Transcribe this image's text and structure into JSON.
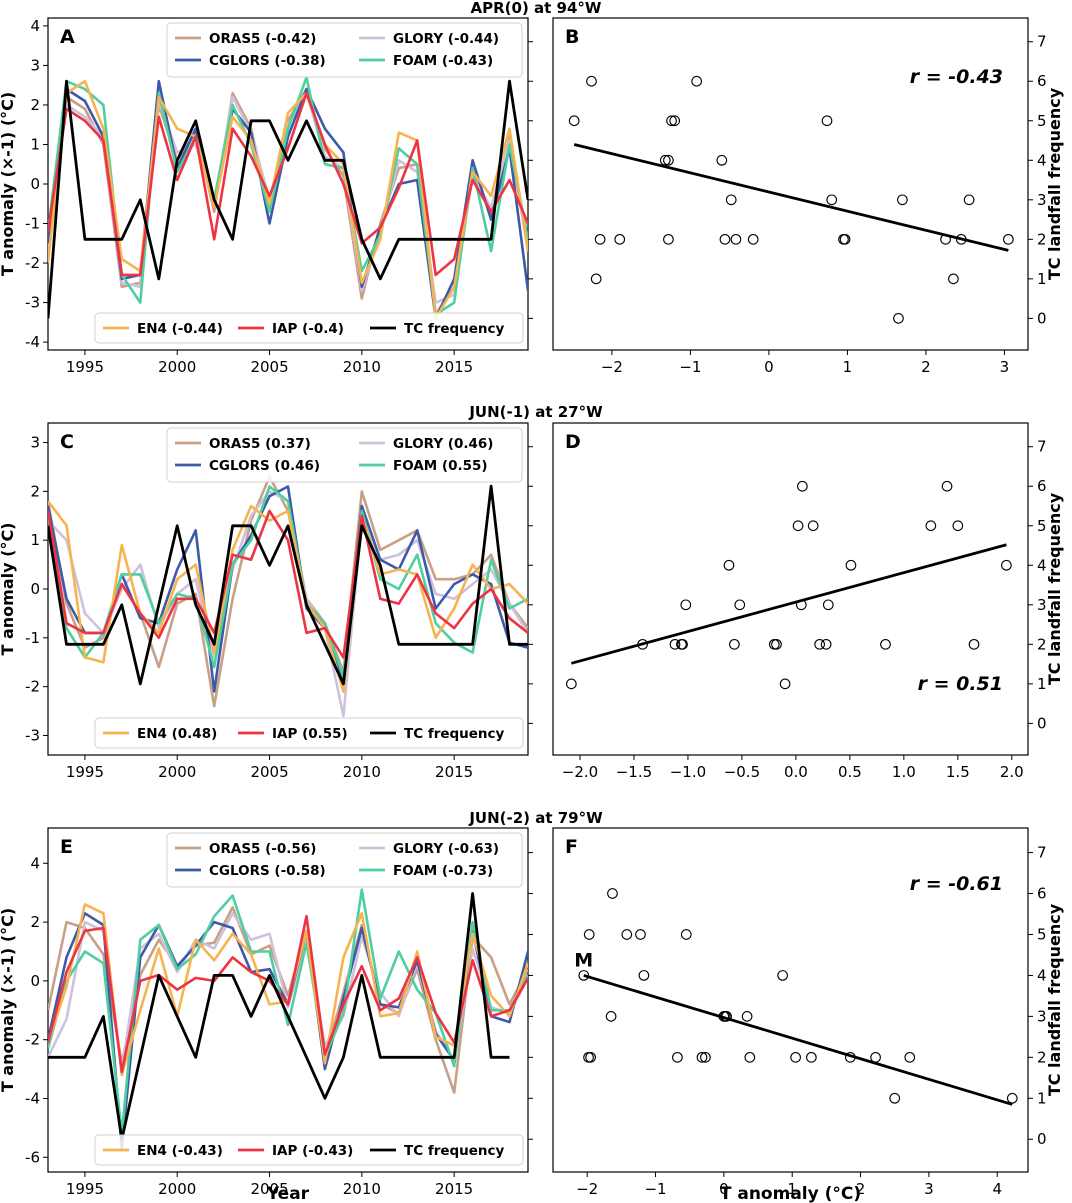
{
  "figure_labels": {
    "xlabel_left": "Year",
    "xlabel_right": "T anomaly (°C)",
    "label_M": "M"
  },
  "chart_data": [
    {
      "type": "line",
      "panel": "A",
      "title": "APR(0) at 94°W",
      "ylabel": "T anomaly (×-1) (°C)",
      "xlabel": "",
      "xlim": [
        1993,
        2019
      ],
      "ylim": [
        -4.2,
        4.2
      ],
      "xticks": [
        1995,
        2000,
        2005,
        2010,
        2015
      ],
      "yticks": [
        -4,
        -3,
        -2,
        -1,
        0,
        1,
        2,
        3,
        4
      ],
      "tc_ylim": [
        -0.8,
        7.6
      ],
      "legend_top": [
        "ORAS5 (-0.42)",
        "GLORY (-0.44)",
        "CGLORS (-0.38)",
        "FOAM (-0.43)"
      ],
      "legend_bottom": [
        "EN4 (-0.44)",
        "IAP (-0.4)",
        "TC frequency"
      ],
      "x": [
        1993,
        1994,
        1995,
        1996,
        1997,
        1998,
        1999,
        2000,
        2001,
        2002,
        2003,
        2004,
        2005,
        2006,
        2007,
        2008,
        2009,
        2010,
        2011,
        2012,
        2013,
        2014,
        2015,
        2016,
        2017,
        2018,
        2019
      ],
      "series": [
        {
          "name": "ORAS5",
          "color": "#c8a088",
          "values": [
            -1.8,
            2.2,
            1.9,
            1.0,
            -2.6,
            -2.5,
            2.0,
            0.6,
            1.3,
            -0.7,
            2.3,
            1.4,
            -0.6,
            1.6,
            2.4,
            0.9,
            0.2,
            -2.9,
            -1.0,
            0.4,
            0.5,
            -3.3,
            -2.6,
            0.3,
            -0.8,
            1.2,
            -1.5
          ]
        },
        {
          "name": "GLORY",
          "color": "#cfc1dc",
          "values": [
            -1.6,
            2.0,
            1.7,
            1.2,
            -2.5,
            -2.6,
            2.1,
            0.8,
            1.0,
            -0.5,
            2.2,
            1.3,
            -0.4,
            1.5,
            2.3,
            0.7,
            0.4,
            -2.7,
            -1.2,
            0.6,
            0.3,
            -3.0,
            -2.8,
            0.2,
            -0.6,
            1.1,
            -1.7
          ]
        },
        {
          "name": "CGLORS",
          "color": "#3d5aa8",
          "values": [
            -1.5,
            2.4,
            2.1,
            1.2,
            -2.4,
            -2.3,
            2.6,
            0.4,
            1.4,
            -0.6,
            1.9,
            1.3,
            -1.0,
            1.2,
            2.4,
            1.4,
            0.8,
            -2.6,
            -1.1,
            0.0,
            0.1,
            -3.4,
            -2.4,
            0.6,
            -0.9,
            0.9,
            -2.7
          ]
        },
        {
          "name": "FOAM",
          "color": "#4fcf9e",
          "values": [
            -1.2,
            2.6,
            2.4,
            2.0,
            -2.3,
            -3.0,
            2.3,
            0.3,
            1.2,
            -0.4,
            2.0,
            1.0,
            -0.7,
            1.4,
            2.7,
            0.5,
            0.4,
            -2.2,
            -1.3,
            0.9,
            0.5,
            -3.3,
            -3.0,
            0.4,
            -1.7,
            1.0,
            -1.4
          ]
        },
        {
          "name": "EN4",
          "color": "#f7b350",
          "values": [
            -2.0,
            2.3,
            2.6,
            1.4,
            -1.9,
            -2.2,
            2.2,
            1.4,
            1.2,
            -0.6,
            1.7,
            1.1,
            -0.5,
            1.8,
            2.3,
            1.0,
            0.5,
            -2.5,
            -1.4,
            1.3,
            1.1,
            -3.4,
            -2.6,
            0.3,
            -0.3,
            1.4,
            -1.7
          ]
        },
        {
          "name": "IAP",
          "color": "#ee3344",
          "values": [
            -1.2,
            1.9,
            1.6,
            1.1,
            -2.3,
            -2.3,
            1.7,
            0.1,
            1.2,
            -1.4,
            1.4,
            0.7,
            -0.3,
            0.9,
            2.3,
            1.0,
            0.0,
            -1.5,
            -1.1,
            -0.1,
            1.1,
            -2.3,
            -1.9,
            0.1,
            -0.7,
            0.1,
            -1.0
          ]
        }
      ],
      "tc_frequency": {
        "name": "TC frequency",
        "color": "#000000",
        "values": [
          0,
          6,
          2,
          2,
          2,
          3,
          1,
          4,
          5,
          3,
          2,
          5,
          5,
          4,
          5,
          4,
          4,
          2,
          1,
          2,
          2,
          2,
          2,
          2,
          2,
          6,
          3
        ]
      },
      "annotations": {
        "panel_label": "A"
      }
    },
    {
      "type": "scatter",
      "panel": "B",
      "ylabel": "TC landfall frequency",
      "xlabel": "",
      "xlim": [
        -2.75,
        3.3
      ],
      "ylim": [
        -0.8,
        7.6
      ],
      "xticks": [
        -2,
        -1,
        0,
        1,
        2,
        3
      ],
      "yticks": [
        0,
        1,
        2,
        3,
        4,
        5,
        6,
        7
      ],
      "r_text": "r = -0.43",
      "x": [
        -2.48,
        -2.26,
        -2.2,
        -2.15,
        -1.9,
        -1.32,
        -1.28,
        -1.24,
        -1.28,
        -1.2,
        -0.92,
        -0.6,
        -0.56,
        -0.48,
        -0.42,
        -0.2,
        0.74,
        0.8,
        0.95,
        0.97,
        1.65,
        1.7,
        2.25,
        2.35,
        2.45,
        2.55,
        3.05
      ],
      "y": [
        5,
        6,
        1,
        2,
        2,
        4,
        2,
        5,
        4,
        5,
        6,
        4,
        2,
        3,
        2,
        2,
        5,
        3,
        2,
        2,
        0,
        3,
        2,
        1,
        2,
        3,
        2
      ],
      "fit": {
        "x": [
          -2.48,
          3.05
        ],
        "y": [
          4.4,
          1.72
        ]
      },
      "annotations": {
        "panel_label": "B"
      }
    },
    {
      "type": "line",
      "panel": "C",
      "title": "JUN(-1) at 27°W",
      "ylabel": "T anomaly (°C)",
      "xlabel": "",
      "xlim": [
        1993,
        2019
      ],
      "ylim": [
        -3.4,
        3.4
      ],
      "xticks": [
        1995,
        2000,
        2005,
        2010,
        2015
      ],
      "yticks": [
        -3,
        -2,
        -1,
        0,
        1,
        2,
        3
      ],
      "tc_ylim": [
        -0.8,
        7.6
      ],
      "legend_top": [
        "ORAS5 (0.37)",
        "GLORY (0.46)",
        "CGLORS (0.46)",
        "FOAM (0.55)"
      ],
      "legend_bottom": [
        "EN4 (0.48)",
        "IAP (0.55)",
        "TC frequency"
      ],
      "x": [
        1993,
        1994,
        1995,
        1996,
        1997,
        1998,
        1999,
        2000,
        2001,
        2002,
        2003,
        2004,
        2005,
        2006,
        2007,
        2008,
        2009,
        2010,
        2011,
        2012,
        2013,
        2014,
        2015,
        2016,
        2017,
        2018,
        2019
      ],
      "series": [
        {
          "name": "ORAS5",
          "color": "#c8a088",
          "values": [
            1.8,
            -0.3,
            -1.2,
            -1.0,
            0.1,
            -0.5,
            -1.6,
            -0.3,
            -0.1,
            -2.4,
            -0.2,
            1.4,
            2.3,
            1.6,
            -0.2,
            -0.7,
            -1.7,
            2.0,
            0.8,
            1.0,
            1.2,
            0.2,
            0.2,
            0.3,
            0.7,
            -0.3,
            -0.8
          ]
        },
        {
          "name": "GLORY",
          "color": "#cfc1dc",
          "values": [
            1.4,
            1.0,
            -0.5,
            -0.9,
            0.0,
            0.5,
            -0.8,
            -0.1,
            0.2,
            -1.4,
            0.4,
            1.5,
            2.0,
            1.8,
            -0.2,
            -0.8,
            -2.6,
            1.4,
            0.6,
            0.7,
            1.0,
            -0.1,
            -0.2,
            0.1,
            0.4,
            -0.3,
            -0.9
          ]
        },
        {
          "name": "CGLORS",
          "color": "#3d5aa8",
          "values": [
            1.7,
            -0.2,
            -0.9,
            -0.9,
            0.3,
            -0.6,
            -0.7,
            0.4,
            1.2,
            -2.1,
            0.5,
            1.1,
            1.9,
            2.1,
            -0.4,
            -0.8,
            -1.9,
            1.7,
            0.6,
            0.4,
            1.2,
            -0.4,
            0.1,
            0.3,
            0.1,
            -1.1,
            -1.2
          ]
        },
        {
          "name": "FOAM",
          "color": "#4fcf9e",
          "values": [
            1.5,
            -0.8,
            -1.4,
            -0.9,
            0.3,
            0.3,
            -0.7,
            -0.1,
            -0.2,
            -1.6,
            0.5,
            1.0,
            2.1,
            1.8,
            -0.3,
            -0.7,
            -1.8,
            1.6,
            0.2,
            0.0,
            0.7,
            -0.7,
            -1.1,
            -1.3,
            0.6,
            -0.4,
            -0.2
          ]
        },
        {
          "name": "EN4",
          "color": "#f7b350",
          "values": [
            1.8,
            1.3,
            -1.4,
            -1.5,
            0.9,
            -0.5,
            -0.9,
            0.2,
            0.5,
            -1.3,
            0.8,
            1.7,
            1.4,
            1.6,
            -0.3,
            -0.8,
            -2.1,
            1.5,
            0.3,
            0.4,
            0.3,
            -1.0,
            -0.4,
            0.5,
            0.0,
            0.1,
            -0.3
          ]
        },
        {
          "name": "IAP",
          "color": "#ee3344",
          "values": [
            1.6,
            -0.7,
            -0.9,
            -0.9,
            0.1,
            -0.5,
            -1.0,
            -0.2,
            -0.2,
            -0.9,
            0.7,
            0.6,
            1.6,
            1.0,
            -0.9,
            -0.8,
            -1.4,
            1.5,
            -0.2,
            -0.3,
            0.3,
            -0.5,
            -0.8,
            -0.3,
            0.0,
            -0.6,
            -0.9
          ]
        }
      ],
      "tc_frequency": {
        "name": "TC frequency",
        "color": "#000000",
        "values": [
          5,
          2,
          2,
          2,
          3,
          1,
          3,
          5,
          3,
          2,
          5,
          5,
          4,
          5,
          3,
          2,
          1,
          5,
          4,
          2,
          2,
          2,
          2,
          2,
          6,
          2,
          2
        ]
      },
      "annotations": {
        "panel_label": "C"
      }
    },
    {
      "type": "scatter",
      "panel": "D",
      "ylabel": "TC landfall frequency",
      "xlabel": "",
      "xlim": [
        -2.25,
        2.15
      ],
      "ylim": [
        -0.8,
        7.6
      ],
      "xticks": [
        -2.0,
        -1.5,
        -1.0,
        -0.5,
        0.0,
        0.5,
        1.0,
        1.5,
        2.0
      ],
      "yticks": [
        0,
        1,
        2,
        3,
        4,
        5,
        6,
        7
      ],
      "r_text": "r = 0.51",
      "x": [
        -2.08,
        -1.42,
        -1.12,
        -1.06,
        -1.05,
        -1.02,
        -0.62,
        -0.57,
        -0.52,
        -0.2,
        -0.18,
        -0.1,
        0.02,
        0.05,
        0.06,
        0.16,
        0.22,
        0.28,
        0.3,
        0.51,
        0.83,
        1.25,
        1.4,
        1.5,
        1.65,
        1.95
      ],
      "y": [
        1,
        2,
        2,
        2,
        2,
        3,
        4,
        2,
        3,
        2,
        2,
        1,
        5,
        3,
        6,
        5,
        2,
        2,
        3,
        4,
        2,
        5,
        6,
        5,
        2,
        4
      ],
      "fit": {
        "x": [
          -2.08,
          1.95
        ],
        "y": [
          1.52,
          4.52
        ]
      },
      "annotations": {
        "panel_label": "D"
      }
    },
    {
      "type": "line",
      "panel": "E",
      "title": "JUN(-2) at 79°W",
      "ylabel": "T anomaly (×-1) (°C)",
      "xlabel": "Year",
      "xlim": [
        1993,
        2019
      ],
      "ylim": [
        -6.5,
        5.2
      ],
      "xticks": [
        1995,
        2000,
        2005,
        2010,
        2015
      ],
      "yticks": [
        -6,
        -4,
        -2,
        0,
        2,
        4
      ],
      "tc_ylim": [
        -0.8,
        7.6
      ],
      "legend_top": [
        "ORAS5 (-0.56)",
        "GLORY (-0.63)",
        "CGLORS (-0.58)",
        "FOAM (-0.73)"
      ],
      "legend_bottom": [
        "EN4 (-0.43)",
        "IAP (-0.43)",
        "TC frequency"
      ],
      "x": [
        1993,
        1994,
        1995,
        1996,
        1997,
        1998,
        1999,
        2000,
        2001,
        2002,
        2003,
        2004,
        2005,
        2006,
        2007,
        2008,
        2009,
        2010,
        2011,
        2012,
        2013,
        2014,
        2015,
        2016,
        2017,
        2018,
        2019
      ],
      "series": [
        {
          "name": "ORAS5",
          "color": "#c8a088",
          "values": [
            -1.0,
            2.0,
            1.8,
            0.9,
            -2.8,
            0.2,
            1.4,
            0.5,
            1.2,
            1.3,
            2.5,
            0.9,
            1.2,
            -0.5,
            1.7,
            -2.6,
            -0.4,
            1.9,
            -0.8,
            -1.1,
            0.4,
            -2.0,
            -3.8,
            1.5,
            0.8,
            -0.8,
            0.4
          ]
        },
        {
          "name": "GLORY",
          "color": "#cfc1dc",
          "values": [
            -2.6,
            -1.3,
            2.0,
            1.7,
            -3.0,
            1.1,
            1.6,
            0.3,
            1.4,
            1.1,
            2.3,
            1.4,
            1.6,
            -0.9,
            1.4,
            -2.2,
            -1.2,
            1.5,
            -0.4,
            -1.2,
            0.6,
            -1.7,
            -2.7,
            1.1,
            -0.9,
            -1.1,
            0.1
          ]
        },
        {
          "name": "CGLORS",
          "color": "#3d5aa8",
          "values": [
            -2.0,
            0.8,
            2.3,
            1.9,
            -5.7,
            0.8,
            1.9,
            0.5,
            1.2,
            2.0,
            1.8,
            0.3,
            0.4,
            -0.8,
            1.7,
            -3.0,
            -0.6,
            1.8,
            -0.8,
            -0.9,
            0.7,
            -1.8,
            -2.7,
            1.7,
            -1.2,
            -1.4,
            1.0
          ]
        },
        {
          "name": "FOAM",
          "color": "#4fcf9e",
          "values": [
            -2.3,
            0.0,
            1.0,
            0.6,
            -5.2,
            1.4,
            1.9,
            0.4,
            0.9,
            2.2,
            2.9,
            1.0,
            1.0,
            -1.5,
            1.3,
            -2.6,
            -1.1,
            3.1,
            -0.6,
            1.0,
            -0.3,
            -1.1,
            -2.9,
            2.0,
            -1.0,
            -1.0,
            0.2
          ]
        },
        {
          "name": "EN4",
          "color": "#f7b350",
          "values": [
            -2.1,
            -0.2,
            2.6,
            2.3,
            -3.2,
            -1.0,
            1.1,
            -1.2,
            1.4,
            0.7,
            1.6,
            0.9,
            -0.8,
            -0.7,
            1.7,
            -2.8,
            0.8,
            2.3,
            -1.2,
            -1.1,
            1.0,
            -1.9,
            -2.2,
            1.6,
            -0.5,
            -1.2,
            0.6
          ]
        },
        {
          "name": "IAP",
          "color": "#ee3344",
          "values": [
            -2.1,
            0.3,
            1.7,
            1.8,
            -3.1,
            0.0,
            0.2,
            -0.3,
            0.1,
            0.0,
            0.8,
            0.3,
            0.0,
            -0.8,
            2.2,
            -2.5,
            -0.8,
            0.5,
            -1.0,
            -0.6,
            0.8,
            -1.1,
            -2.1,
            0.7,
            -1.2,
            -1.0,
            0.1
          ]
        }
      ],
      "tc_frequency": {
        "name": "TC frequency",
        "color": "#000000",
        "values": [
          2,
          2,
          2,
          3,
          0,
          2,
          4,
          3,
          2,
          4,
          4,
          3,
          4,
          3,
          2,
          1,
          2,
          4,
          2,
          2,
          2,
          2,
          2,
          6,
          2,
          2,
          null
        ]
      },
      "annotations": {
        "panel_label": "E"
      }
    },
    {
      "type": "scatter",
      "panel": "F",
      "ylabel": "TC landfall frequency",
      "xlabel": "T anomaly (°C)",
      "xlim": [
        -2.5,
        4.45
      ],
      "ylim": [
        -0.8,
        7.6
      ],
      "xticks": [
        -2,
        -1,
        0,
        1,
        2,
        3,
        4
      ],
      "yticks": [
        0,
        1,
        2,
        3,
        4,
        5,
        6,
        7
      ],
      "r_text": "r = -0.61",
      "x": [
        -2.05,
        -1.98,
        -1.97,
        -1.95,
        -1.65,
        -1.63,
        -1.42,
        -1.22,
        -1.17,
        -0.55,
        -0.68,
        -0.32,
        -0.27,
        0.0,
        0.02,
        0.04,
        0.34,
        0.38,
        0.86,
        1.05,
        1.28,
        1.85,
        2.22,
        2.5,
        2.72,
        4.22
      ],
      "y": [
        4,
        2,
        5,
        2,
        3,
        6,
        5,
        5,
        4,
        5,
        2,
        2,
        2,
        3,
        3,
        3,
        3,
        2,
        4,
        2,
        2,
        2,
        2,
        1,
        2,
        1
      ],
      "fit": {
        "x": [
          -2.05,
          4.22
        ],
        "y": [
          4.0,
          0.85
        ]
      },
      "annotations": {
        "panel_label": "F",
        "point_label": "M"
      }
    }
  ]
}
